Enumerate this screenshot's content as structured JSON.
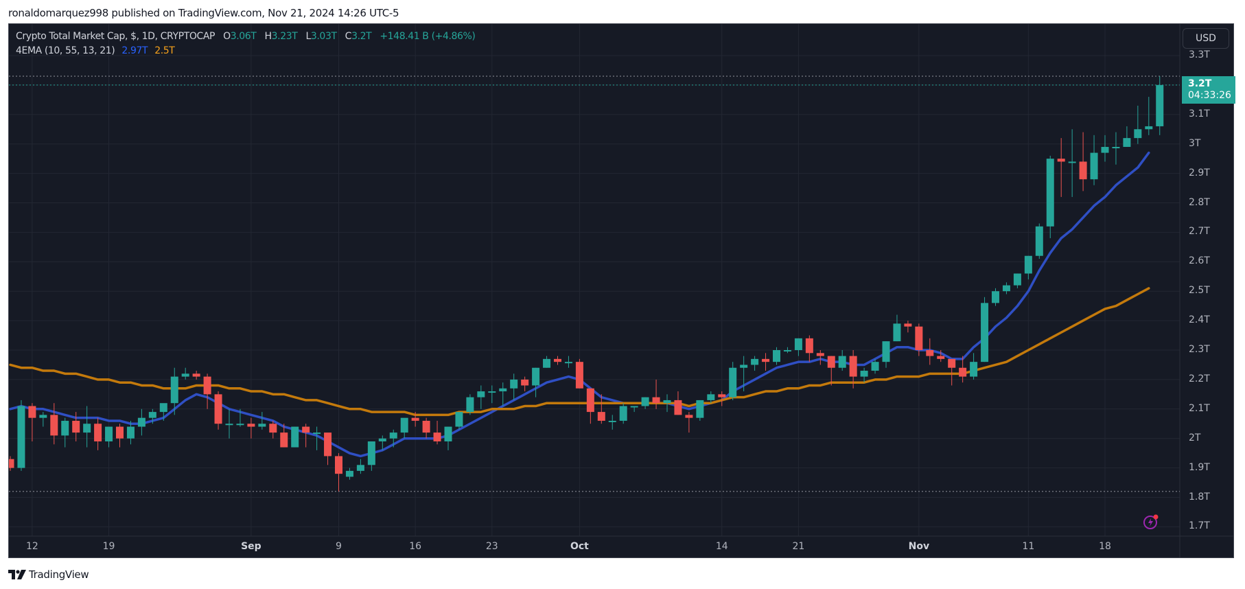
{
  "publisher_line": "ronaldomarquez998 published on TradingView.com, Nov 21, 2024 14:26 UTC-5",
  "brand": {
    "logo_icon": "tradingview-logo-icon",
    "name": "TradingView"
  },
  "legend": {
    "symbol": "Crypto Total Market Cap, $, 1D, CRYPTOCAP",
    "open_label": "O",
    "open": "3.06T",
    "high_label": "H",
    "high": "3.23T",
    "low_label": "L",
    "low": "3.03T",
    "close_label": "C",
    "close": "3.2T",
    "change": "+148.41 B (+4.86%)",
    "indicator": "4EMA (10, 55, 13, 21)",
    "ema_fast": "2.97T",
    "ema_slow": "2.5T"
  },
  "currency_button": "USD",
  "last_price": {
    "value": "3.2T",
    "countdown": "04:33:26"
  },
  "colors": {
    "up": "#26a69a",
    "down": "#ef5350",
    "ema_fast": "#2f4fc4",
    "ema_slow": "#c47a0c",
    "background": "#161a25",
    "grid": "#232733"
  },
  "chart_data": {
    "type": "candlestick",
    "title": "Crypto Total Market Cap, $, 1D, CRYPTOCAP",
    "xlabel": "",
    "ylabel": "USD",
    "ylim": [
      1.66,
      3.33
    ],
    "y_ticks": [
      "3.3T",
      "3.2T",
      "3.1T",
      "3T",
      "2.9T",
      "2.8T",
      "2.7T",
      "2.6T",
      "2.5T",
      "2.4T",
      "2.3T",
      "2.2T",
      "2.1T",
      "2T",
      "1.9T",
      "1.8T",
      "1.7T"
    ],
    "x_ticks": [
      {
        "label": "12",
        "index": 2
      },
      {
        "label": "19",
        "index": 9
      },
      {
        "label": "Sep",
        "index": 22,
        "bold": true
      },
      {
        "label": "9",
        "index": 30
      },
      {
        "label": "16",
        "index": 37
      },
      {
        "label": "23",
        "index": 44
      },
      {
        "label": "Oct",
        "index": 52,
        "bold": true
      },
      {
        "label": "14",
        "index": 65
      },
      {
        "label": "21",
        "index": 72
      },
      {
        "label": "Nov",
        "index": 83,
        "bold": true
      },
      {
        "label": "11",
        "index": 93
      },
      {
        "label": "18",
        "index": 100
      }
    ],
    "date_range": [
      "2024-08-10",
      "2024-11-21"
    ],
    "ohlc": [
      [
        1.93,
        1.94,
        1.89,
        1.9
      ],
      [
        1.9,
        2.13,
        1.89,
        2.11
      ],
      [
        2.11,
        2.12,
        1.99,
        2.07
      ],
      [
        2.07,
        2.09,
        2.04,
        2.08
      ],
      [
        2.08,
        2.12,
        1.98,
        2.01
      ],
      [
        2.01,
        2.07,
        1.97,
        2.06
      ],
      [
        2.06,
        2.09,
        1.99,
        2.02
      ],
      [
        2.02,
        2.11,
        1.97,
        2.05
      ],
      [
        2.05,
        2.07,
        1.96,
        1.99
      ],
      [
        1.99,
        2.04,
        1.97,
        2.04
      ],
      [
        2.04,
        2.05,
        1.97,
        2.0
      ],
      [
        2.0,
        2.06,
        1.98,
        2.04
      ],
      [
        2.04,
        2.1,
        2.01,
        2.07
      ],
      [
        2.07,
        2.1,
        2.05,
        2.09
      ],
      [
        2.09,
        2.11,
        2.06,
        2.12
      ],
      [
        2.12,
        2.24,
        2.08,
        2.21
      ],
      [
        2.21,
        2.24,
        2.2,
        2.22
      ],
      [
        2.22,
        2.23,
        2.2,
        2.21
      ],
      [
        2.21,
        2.22,
        2.1,
        2.15
      ],
      [
        2.15,
        2.16,
        2.03,
        2.05
      ],
      [
        2.05,
        2.1,
        2.0,
        2.05
      ],
      [
        2.05,
        2.1,
        2.04,
        2.05
      ],
      [
        2.05,
        2.07,
        2.0,
        2.04
      ],
      [
        2.04,
        2.09,
        2.03,
        2.05
      ],
      [
        2.05,
        2.06,
        2.0,
        2.02
      ],
      [
        2.02,
        2.05,
        1.97,
        1.97
      ],
      [
        1.97,
        2.04,
        1.97,
        2.04
      ],
      [
        2.04,
        2.05,
        1.97,
        2.02
      ],
      [
        2.02,
        2.04,
        1.96,
        2.02
      ],
      [
        2.02,
        2.01,
        1.91,
        1.94
      ],
      [
        1.94,
        1.95,
        1.82,
        1.88
      ],
      [
        1.87,
        1.9,
        1.86,
        1.89
      ],
      [
        1.89,
        1.93,
        1.88,
        1.91
      ],
      [
        1.91,
        1.99,
        1.89,
        1.99
      ],
      [
        1.99,
        2.01,
        1.96,
        2.0
      ],
      [
        2.0,
        2.03,
        1.97,
        2.02
      ],
      [
        2.02,
        2.06,
        2.0,
        2.07
      ],
      [
        2.07,
        2.09,
        2.04,
        2.06
      ],
      [
        2.06,
        2.07,
        2.0,
        2.02
      ],
      [
        2.02,
        2.06,
        1.98,
        1.99
      ],
      [
        1.99,
        2.04,
        1.96,
        2.04
      ],
      [
        2.04,
        2.08,
        2.03,
        2.09
      ],
      [
        2.09,
        2.15,
        2.08,
        2.14
      ],
      [
        2.14,
        2.18,
        2.1,
        2.16
      ],
      [
        2.16,
        2.18,
        2.12,
        2.16
      ],
      [
        2.16,
        2.19,
        2.11,
        2.17
      ],
      [
        2.17,
        2.22,
        2.13,
        2.2
      ],
      [
        2.2,
        2.21,
        2.16,
        2.18
      ],
      [
        2.18,
        2.24,
        2.14,
        2.24
      ],
      [
        2.24,
        2.28,
        2.24,
        2.27
      ],
      [
        2.27,
        2.28,
        2.25,
        2.26
      ],
      [
        2.26,
        2.28,
        2.24,
        2.26
      ],
      [
        2.26,
        2.27,
        2.17,
        2.17
      ],
      [
        2.17,
        2.17,
        2.05,
        2.09
      ],
      [
        2.09,
        2.15,
        2.05,
        2.06
      ],
      [
        2.06,
        2.08,
        2.03,
        2.06
      ],
      [
        2.06,
        2.12,
        2.05,
        2.11
      ],
      [
        2.11,
        2.11,
        2.09,
        2.11
      ],
      [
        2.11,
        2.14,
        2.1,
        2.14
      ],
      [
        2.14,
        2.2,
        2.1,
        2.12
      ],
      [
        2.12,
        2.15,
        2.09,
        2.13
      ],
      [
        2.13,
        2.16,
        2.08,
        2.08
      ],
      [
        2.08,
        2.09,
        2.02,
        2.07
      ],
      [
        2.07,
        2.13,
        2.06,
        2.13
      ],
      [
        2.13,
        2.16,
        2.12,
        2.15
      ],
      [
        2.15,
        2.16,
        2.11,
        2.14
      ],
      [
        2.14,
        2.26,
        2.13,
        2.24
      ],
      [
        2.24,
        2.28,
        2.16,
        2.25
      ],
      [
        2.25,
        2.28,
        2.23,
        2.27
      ],
      [
        2.27,
        2.29,
        2.23,
        2.26
      ],
      [
        2.26,
        2.31,
        2.25,
        2.3
      ],
      [
        2.3,
        2.31,
        2.29,
        2.3
      ],
      [
        2.3,
        2.34,
        2.28,
        2.34
      ],
      [
        2.34,
        2.35,
        2.26,
        2.29
      ],
      [
        2.29,
        2.3,
        2.25,
        2.28
      ],
      [
        2.28,
        2.28,
        2.18,
        2.24
      ],
      [
        2.24,
        2.3,
        2.23,
        2.28
      ],
      [
        2.28,
        2.3,
        2.17,
        2.21
      ],
      [
        2.21,
        2.24,
        2.19,
        2.23
      ],
      [
        2.23,
        2.27,
        2.22,
        2.26
      ],
      [
        2.26,
        2.33,
        2.24,
        2.33
      ],
      [
        2.33,
        2.42,
        2.33,
        2.39
      ],
      [
        2.39,
        2.4,
        2.36,
        2.38
      ],
      [
        2.38,
        2.39,
        2.28,
        2.3
      ],
      [
        2.3,
        2.34,
        2.25,
        2.28
      ],
      [
        2.28,
        2.3,
        2.26,
        2.27
      ],
      [
        2.27,
        2.27,
        2.18,
        2.24
      ],
      [
        2.24,
        2.28,
        2.19,
        2.21
      ],
      [
        2.21,
        2.29,
        2.2,
        2.26
      ],
      [
        2.26,
        2.48,
        2.26,
        2.46
      ],
      [
        2.46,
        2.51,
        2.45,
        2.5
      ],
      [
        2.5,
        2.53,
        2.49,
        2.52
      ],
      [
        2.52,
        2.56,
        2.51,
        2.56
      ],
      [
        2.56,
        2.62,
        2.54,
        2.62
      ],
      [
        2.62,
        2.73,
        2.61,
        2.72
      ],
      [
        2.72,
        2.96,
        2.68,
        2.95
      ],
      [
        2.95,
        3.02,
        2.82,
        2.94
      ],
      [
        2.94,
        3.05,
        2.82,
        2.94
      ],
      [
        2.94,
        3.04,
        2.84,
        2.88
      ],
      [
        2.88,
        3.03,
        2.86,
        2.97
      ],
      [
        2.97,
        3.03,
        2.94,
        2.99
      ],
      [
        2.99,
        3.04,
        2.93,
        2.99
      ],
      [
        2.99,
        3.06,
        2.99,
        3.02
      ],
      [
        3.02,
        3.13,
        3.0,
        3.05
      ],
      [
        3.05,
        3.16,
        3.03,
        3.06
      ],
      [
        3.06,
        3.23,
        3.03,
        3.2
      ]
    ],
    "series": [
      {
        "name": "EMA fast (blue)",
        "last": 2.97,
        "values": [
          2.1,
          2.11,
          2.1,
          2.1,
          2.09,
          2.08,
          2.07,
          2.07,
          2.07,
          2.06,
          2.06,
          2.05,
          2.05,
          2.06,
          2.07,
          2.1,
          2.13,
          2.15,
          2.14,
          2.12,
          2.1,
          2.09,
          2.08,
          2.07,
          2.06,
          2.04,
          2.03,
          2.02,
          2.01,
          1.99,
          1.97,
          1.95,
          1.94,
          1.95,
          1.96,
          1.98,
          2.0,
          2.0,
          2.0,
          2.0,
          2.01,
          2.03,
          2.05,
          2.07,
          2.09,
          2.11,
          2.13,
          2.15,
          2.17,
          2.19,
          2.2,
          2.21,
          2.2,
          2.17,
          2.14,
          2.13,
          2.12,
          2.12,
          2.12,
          2.12,
          2.12,
          2.11,
          2.1,
          2.11,
          2.12,
          2.13,
          2.16,
          2.18,
          2.2,
          2.22,
          2.24,
          2.25,
          2.26,
          2.26,
          2.27,
          2.26,
          2.26,
          2.25,
          2.25,
          2.27,
          2.29,
          2.31,
          2.31,
          2.3,
          2.3,
          2.29,
          2.27,
          2.27,
          2.31,
          2.34,
          2.38,
          2.41,
          2.45,
          2.5,
          2.57,
          2.63,
          2.68,
          2.71,
          2.75,
          2.79,
          2.82,
          2.86,
          2.89,
          2.92,
          2.97
        ]
      },
      {
        "name": "EMA slow (orange)",
        "last": 2.5,
        "values": [
          2.25,
          2.24,
          2.24,
          2.23,
          2.23,
          2.22,
          2.22,
          2.21,
          2.2,
          2.2,
          2.19,
          2.19,
          2.18,
          2.18,
          2.17,
          2.17,
          2.17,
          2.18,
          2.18,
          2.18,
          2.17,
          2.17,
          2.16,
          2.16,
          2.15,
          2.15,
          2.14,
          2.13,
          2.13,
          2.12,
          2.11,
          2.1,
          2.1,
          2.09,
          2.09,
          2.09,
          2.09,
          2.08,
          2.08,
          2.08,
          2.08,
          2.09,
          2.09,
          2.09,
          2.1,
          2.1,
          2.1,
          2.11,
          2.11,
          2.12,
          2.12,
          2.12,
          2.12,
          2.12,
          2.12,
          2.12,
          2.12,
          2.12,
          2.12,
          2.12,
          2.12,
          2.12,
          2.11,
          2.12,
          2.12,
          2.13,
          2.14,
          2.14,
          2.15,
          2.16,
          2.16,
          2.17,
          2.17,
          2.18,
          2.18,
          2.19,
          2.19,
          2.19,
          2.19,
          2.2,
          2.2,
          2.21,
          2.21,
          2.21,
          2.22,
          2.22,
          2.22,
          2.22,
          2.23,
          2.24,
          2.25,
          2.26,
          2.28,
          2.3,
          2.32,
          2.34,
          2.36,
          2.38,
          2.4,
          2.42,
          2.44,
          2.45,
          2.47,
          2.49,
          2.51
        ]
      }
    ],
    "horizontal_lines": [
      {
        "label": "last close",
        "value": 3.2,
        "style": "dotted",
        "color": "#26a69a"
      },
      {
        "label": "period high",
        "value": 3.23,
        "style": "dotted",
        "color": "#9598a1"
      },
      {
        "label": "period low",
        "value": 1.82,
        "style": "dotted",
        "color": "#9598a1"
      }
    ]
  }
}
